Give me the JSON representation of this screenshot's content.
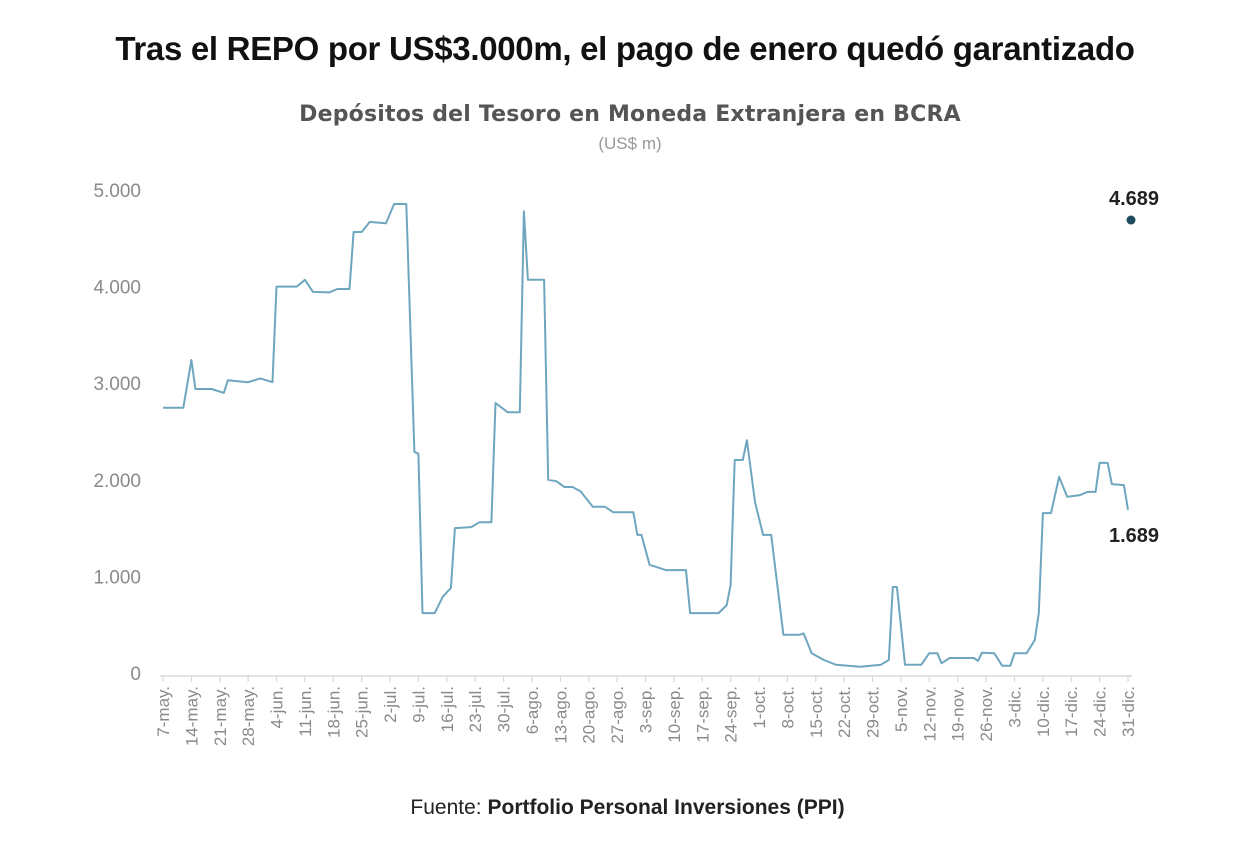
{
  "headline": "Tras el REPO por US$3.000m, el pago de enero quedó garantizado",
  "source": {
    "prefix": "Fuente: ",
    "name": "Portfolio Personal Inversiones (PPI)"
  },
  "chart_data": {
    "type": "line",
    "title": "Depósitos del Tesoro en Moneda Extranjera en BCRA",
    "subtitle": "(US$ m)",
    "xlabel": "",
    "ylabel": "",
    "ylim": [
      0,
      5000
    ],
    "yticks": [
      0,
      1000,
      2000,
      3000,
      4000,
      5000
    ],
    "ytick_labels": [
      "0",
      "1.000",
      "2.000",
      "3.000",
      "4.000",
      "5.000"
    ],
    "xtick_labels": [
      "7-may.",
      "14-may.",
      "21-may.",
      "28-may.",
      "4-jun.",
      "11-jun.",
      "18-jun.",
      "25-jun.",
      "2-jul.",
      "9-jul.",
      "16-jul.",
      "23-jul.",
      "30-jul.",
      "6-ago.",
      "13-ago.",
      "20-ago.",
      "27-ago.",
      "3-sep.",
      "10-sep.",
      "17-sep.",
      "24-sep.",
      "1-oct.",
      "8-oct.",
      "15-oct.",
      "22-oct.",
      "29-oct.",
      "5-nov.",
      "12-nov.",
      "19-nov.",
      "26-nov.",
      "3-dic.",
      "10-dic.",
      "17-dic.",
      "24-dic.",
      "31-dic."
    ],
    "grid": false,
    "colors": {
      "line": "#6fa6bf",
      "point": "#1d4d5e",
      "axis": "#d8d8d8"
    },
    "series": [
      {
        "points": [
          [
            "7-may",
            2745
          ],
          [
            "12-may",
            2745
          ],
          [
            "14-may",
            3240
          ],
          [
            "15-may",
            2940
          ],
          [
            "19-may",
            2940
          ],
          [
            "22-may",
            2900
          ],
          [
            "23-may",
            3030
          ],
          [
            "28-may",
            3010
          ],
          [
            "31-may",
            3050
          ],
          [
            "3-jun",
            3010
          ],
          [
            "4-jun",
            4000
          ],
          [
            "9-jun",
            4000
          ],
          [
            "11-jun",
            4070
          ],
          [
            "13-jun",
            3945
          ],
          [
            "17-jun",
            3940
          ],
          [
            "19-jun",
            3975
          ],
          [
            "22-jun",
            3975
          ],
          [
            "23-jun",
            4565
          ],
          [
            "25-jun",
            4565
          ],
          [
            "27-jun",
            4670
          ],
          [
            "1-jul",
            4655
          ],
          [
            "3-jul",
            4855
          ],
          [
            "6-jul",
            4855
          ],
          [
            "8-jul",
            2290
          ],
          [
            "9-jul",
            2270
          ],
          [
            "10-jul",
            620
          ],
          [
            "13-jul",
            620
          ],
          [
            "15-jul",
            790
          ],
          [
            "17-jul",
            880
          ],
          [
            "18-jul",
            1500
          ],
          [
            "22-jul",
            1510
          ],
          [
            "24-jul",
            1560
          ],
          [
            "27-jul",
            1560
          ],
          [
            "28-jul",
            2795
          ],
          [
            "31-jul",
            2700
          ],
          [
            "3-ago",
            2700
          ],
          [
            "4-ago",
            4780
          ],
          [
            "5-ago",
            4070
          ],
          [
            "9-ago",
            4070
          ],
          [
            "10-ago",
            2000
          ],
          [
            "12-ago",
            1985
          ],
          [
            "14-ago",
            1925
          ],
          [
            "16-ago",
            1925
          ],
          [
            "18-ago",
            1880
          ],
          [
            "21-ago",
            1720
          ],
          [
            "24-ago",
            1720
          ],
          [
            "26-ago",
            1665
          ],
          [
            "31-ago",
            1665
          ],
          [
            "1-sep",
            1430
          ],
          [
            "2-sep",
            1430
          ],
          [
            "4-sep",
            1120
          ],
          [
            "8-sep",
            1065
          ],
          [
            "13-sep",
            1065
          ],
          [
            "14-sep",
            620
          ],
          [
            "21-sep",
            620
          ],
          [
            "23-sep",
            700
          ],
          [
            "24-sep",
            910
          ],
          [
            "25-sep",
            2205
          ],
          [
            "27-sep",
            2205
          ],
          [
            "28-sep",
            2410
          ],
          [
            "30-sep",
            1770
          ],
          [
            "2-oct",
            1430
          ],
          [
            "4-oct",
            1430
          ],
          [
            "7-oct",
            395
          ],
          [
            "11-oct",
            395
          ],
          [
            "12-oct",
            410
          ],
          [
            "14-oct",
            205
          ],
          [
            "17-oct",
            135
          ],
          [
            "20-oct",
            85
          ],
          [
            "26-oct",
            65
          ],
          [
            "31-oct",
            85
          ],
          [
            "2-nov",
            135
          ],
          [
            "3-nov",
            890
          ],
          [
            "4-nov",
            890
          ],
          [
            "6-nov",
            85
          ],
          [
            "10-nov",
            85
          ],
          [
            "12-nov",
            205
          ],
          [
            "14-nov",
            205
          ],
          [
            "15-nov",
            100
          ],
          [
            "17-nov",
            155
          ],
          [
            "23-nov",
            155
          ],
          [
            "24-nov",
            125
          ],
          [
            "25-nov",
            210
          ],
          [
            "28-nov",
            205
          ],
          [
            "30-nov",
            75
          ],
          [
            "2-dic",
            75
          ],
          [
            "3-dic",
            205
          ],
          [
            "6-dic",
            205
          ],
          [
            "8-dic",
            340
          ],
          [
            "9-dic",
            620
          ],
          [
            "10-dic",
            1655
          ],
          [
            "12-dic",
            1655
          ],
          [
            "14-dic",
            2030
          ],
          [
            "16-dic",
            1825
          ],
          [
            "19-dic",
            1840
          ],
          [
            "21-dic",
            1875
          ],
          [
            "23-dic",
            1875
          ],
          [
            "24-dic",
            2175
          ],
          [
            "26-dic",
            2175
          ],
          [
            "27-dic",
            1955
          ],
          [
            "30-dic",
            1945
          ],
          [
            "31-dic",
            1689
          ]
        ]
      }
    ],
    "annotations": [
      {
        "label": "1.689",
        "date": "31-dic",
        "value": 1689,
        "position": "below"
      },
      {
        "label": "4.689",
        "date": "31-dic",
        "value": 4689,
        "position": "above",
        "marker": "point"
      }
    ]
  }
}
